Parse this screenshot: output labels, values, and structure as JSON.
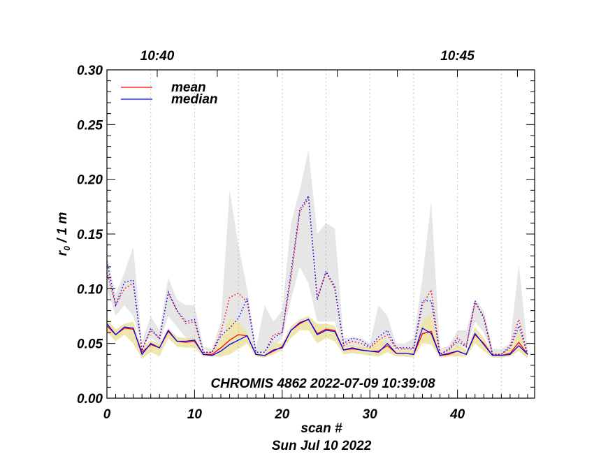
{
  "chart_data": {
    "type": "line",
    "xlabel": "scan #",
    "date_label": "Sun Jul 10 2022",
    "ylabel_main": "r",
    "ylabel_sub": "0",
    "ylabel_rest": " / 1 m",
    "annotation": "CHROMIS 4862 2022-07-09 10:39:08",
    "xlim": [
      0,
      48.8
    ],
    "ylim": [
      0,
      0.3
    ],
    "xticks": [
      "0",
      "10",
      "20",
      "30",
      "40"
    ],
    "xtick_values": [
      0,
      10,
      20,
      30,
      40
    ],
    "yticks": [
      "0.00",
      "0.05",
      "0.10",
      "0.15",
      "0.20",
      "0.25",
      "0.30"
    ],
    "ytick_values": [
      0,
      0.05,
      0.1,
      0.15,
      0.2,
      0.25,
      0.3
    ],
    "top_axis": {
      "labels": [
        "10:40",
        "10:45"
      ],
      "label_minutes": [
        0,
        5
      ],
      "scan_at_1040": 5.74,
      "scans_per_minute": 6.85,
      "minute_ticks": [
        0,
        1,
        2,
        3,
        4,
        5,
        6,
        7
      ]
    },
    "grid_x": [
      5,
      10,
      15,
      20,
      25,
      30,
      35,
      40,
      45
    ],
    "legend": {
      "placement": "top-left",
      "entries": [
        {
          "label": "mean",
          "color": "#ff0000"
        },
        {
          "label": "median",
          "color": "#0000ff"
        }
      ]
    },
    "colors": {
      "mean": "#ff0000",
      "median": "#0000ff",
      "gray_band": "#e6e6e6",
      "yellow_band": "#efe6ae",
      "grid": "#b0b0b0"
    },
    "x": [
      0,
      1,
      2,
      3,
      4,
      5,
      6,
      7,
      8,
      9,
      10,
      11,
      12,
      13,
      14,
      15,
      16,
      17,
      18,
      19,
      20,
      21,
      22,
      23,
      24,
      25,
      26,
      27,
      28,
      29,
      30,
      31,
      32,
      33,
      34,
      35,
      36,
      37,
      38,
      39,
      40,
      41,
      42,
      43,
      44,
      45,
      46,
      47,
      48
    ],
    "series": [
      {
        "name": "mean",
        "style": "solid",
        "values": [
          0.066,
          0.058,
          0.064,
          0.063,
          0.042,
          0.049,
          0.046,
          0.061,
          0.052,
          0.051,
          0.052,
          0.04,
          0.04,
          0.046,
          0.053,
          0.058,
          0.057,
          0.04,
          0.039,
          0.043,
          0.047,
          0.062,
          0.068,
          0.072,
          0.059,
          0.063,
          0.062,
          0.044,
          0.045,
          0.044,
          0.043,
          0.043,
          0.048,
          0.041,
          0.041,
          0.04,
          0.059,
          0.061,
          0.039,
          0.04,
          0.043,
          0.04,
          0.058,
          0.05,
          0.039,
          0.039,
          0.041,
          0.051,
          0.04
        ]
      },
      {
        "name": "median",
        "style": "solid",
        "values": [
          0.068,
          0.058,
          0.065,
          0.064,
          0.04,
          0.05,
          0.046,
          0.062,
          0.052,
          0.052,
          0.053,
          0.04,
          0.039,
          0.043,
          0.049,
          0.053,
          0.057,
          0.04,
          0.039,
          0.044,
          0.046,
          0.062,
          0.069,
          0.072,
          0.058,
          0.062,
          0.061,
          0.044,
          0.046,
          0.044,
          0.043,
          0.042,
          0.05,
          0.041,
          0.041,
          0.04,
          0.064,
          0.059,
          0.039,
          0.041,
          0.043,
          0.04,
          0.059,
          0.049,
          0.039,
          0.039,
          0.04,
          0.048,
          0.04
        ]
      },
      {
        "name": "mean",
        "style": "dotted",
        "values": [
          0.115,
          0.085,
          0.1,
          0.105,
          0.045,
          0.062,
          0.055,
          0.096,
          0.08,
          0.068,
          0.07,
          0.042,
          0.042,
          0.06,
          0.092,
          0.096,
          0.088,
          0.042,
          0.042,
          0.058,
          0.06,
          0.11,
          0.17,
          0.183,
          0.092,
          0.115,
          0.1,
          0.048,
          0.052,
          0.05,
          0.046,
          0.053,
          0.058,
          0.045,
          0.045,
          0.045,
          0.085,
          0.099,
          0.04,
          0.045,
          0.055,
          0.048,
          0.087,
          0.075,
          0.04,
          0.04,
          0.048,
          0.072,
          0.04
        ]
      },
      {
        "name": "median",
        "style": "dotted",
        "values": [
          0.125,
          0.085,
          0.106,
          0.108,
          0.043,
          0.064,
          0.054,
          0.097,
          0.08,
          0.07,
          0.072,
          0.042,
          0.042,
          0.057,
          0.064,
          0.073,
          0.091,
          0.042,
          0.042,
          0.055,
          0.06,
          0.115,
          0.172,
          0.185,
          0.09,
          0.116,
          0.102,
          0.05,
          0.055,
          0.053,
          0.047,
          0.056,
          0.062,
          0.046,
          0.046,
          0.046,
          0.089,
          0.089,
          0.04,
          0.044,
          0.052,
          0.047,
          0.089,
          0.073,
          0.04,
          0.04,
          0.046,
          0.066,
          0.04
        ]
      }
    ],
    "bands": [
      {
        "name": "gray",
        "lower": [
          0.1,
          0.075,
          0.085,
          0.075,
          0.05,
          0.055,
          0.05,
          0.075,
          0.065,
          0.055,
          0.055,
          0.045,
          0.042,
          0.05,
          0.06,
          0.07,
          0.06,
          0.042,
          0.042,
          0.045,
          0.055,
          0.09,
          0.12,
          0.105,
          0.07,
          0.07,
          0.07,
          0.045,
          0.045,
          0.045,
          0.045,
          0.045,
          0.05,
          0.045,
          0.042,
          0.045,
          0.07,
          0.07,
          0.04,
          0.042,
          0.05,
          0.045,
          0.07,
          0.06,
          0.04,
          0.04,
          0.045,
          0.055,
          0.04
        ],
        "upper": [
          0.13,
          0.095,
          0.115,
          0.138,
          0.052,
          0.075,
          0.062,
          0.11,
          0.09,
          0.085,
          0.085,
          0.047,
          0.045,
          0.07,
          0.19,
          0.14,
          0.1,
          0.045,
          0.085,
          0.07,
          0.08,
          0.16,
          0.19,
          0.227,
          0.15,
          0.16,
          0.155,
          0.055,
          0.055,
          0.055,
          0.05,
          0.085,
          0.075,
          0.05,
          0.05,
          0.055,
          0.11,
          0.18,
          0.045,
          0.048,
          0.062,
          0.062,
          0.09,
          0.08,
          0.045,
          0.045,
          0.05,
          0.122,
          0.045
        ]
      },
      {
        "name": "yellow",
        "lower": [
          0.06,
          0.052,
          0.058,
          0.05,
          0.036,
          0.042,
          0.038,
          0.055,
          0.047,
          0.046,
          0.046,
          0.038,
          0.038,
          0.038,
          0.04,
          0.045,
          0.05,
          0.038,
          0.037,
          0.04,
          0.044,
          0.055,
          0.062,
          0.062,
          0.05,
          0.055,
          0.052,
          0.04,
          0.041,
          0.04,
          0.039,
          0.038,
          0.042,
          0.038,
          0.038,
          0.037,
          0.05,
          0.049,
          0.037,
          0.038,
          0.038,
          0.038,
          0.05,
          0.043,
          0.037,
          0.037,
          0.038,
          0.043,
          0.036
        ],
        "upper": [
          0.072,
          0.063,
          0.068,
          0.07,
          0.046,
          0.053,
          0.05,
          0.064,
          0.056,
          0.055,
          0.056,
          0.042,
          0.042,
          0.053,
          0.073,
          0.07,
          0.06,
          0.042,
          0.041,
          0.05,
          0.05,
          0.066,
          0.072,
          0.075,
          0.068,
          0.068,
          0.066,
          0.047,
          0.048,
          0.047,
          0.046,
          0.055,
          0.052,
          0.044,
          0.044,
          0.044,
          0.07,
          0.078,
          0.041,
          0.043,
          0.05,
          0.044,
          0.065,
          0.055,
          0.041,
          0.041,
          0.045,
          0.062,
          0.042
        ]
      }
    ]
  }
}
